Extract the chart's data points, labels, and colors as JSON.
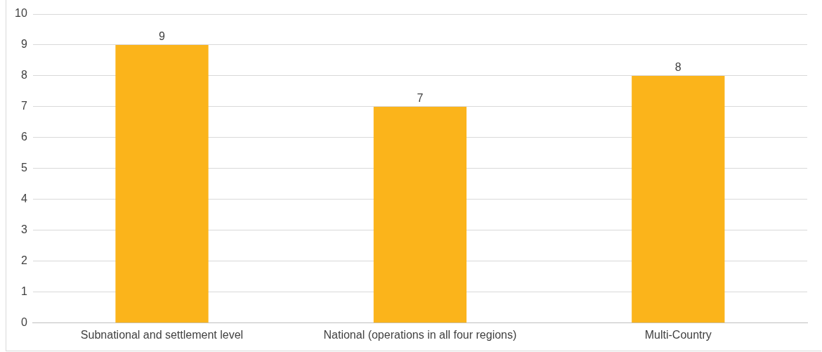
{
  "chart_data": {
    "type": "bar",
    "categories": [
      "Subnational and settlement level",
      "National (operations in all four regions)",
      "Multi-Country"
    ],
    "values": [
      9,
      7,
      8
    ],
    "color": "#fbb41b",
    "ylim": [
      0,
      10
    ],
    "yticks": [
      0,
      1,
      2,
      3,
      4,
      5,
      6,
      7,
      8,
      9,
      10
    ],
    "grid": "y",
    "legend": false,
    "data_labels": true
  }
}
